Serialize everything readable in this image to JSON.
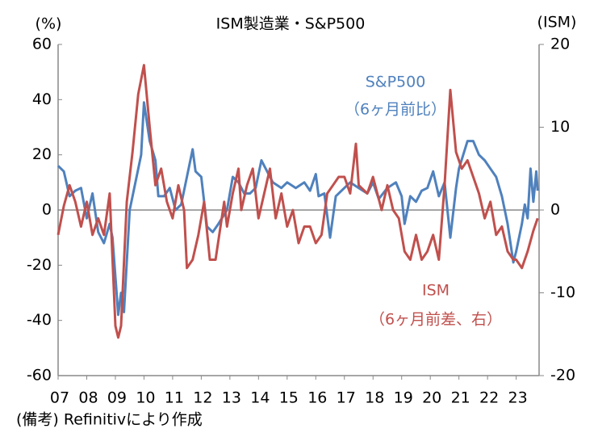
{
  "chart_data": {
    "type": "line",
    "title": "ISM製造業・S&P500",
    "y_label": "(%)",
    "y2_label": "(ISM)",
    "footnote": "(備考) Refinitivにより作成",
    "xlim": [
      2007,
      2023.8
    ],
    "xticks": [
      {
        "value": 2007,
        "label": "07"
      },
      {
        "value": 2008,
        "label": "08"
      },
      {
        "value": 2009,
        "label": "09"
      },
      {
        "value": 2010,
        "label": "10"
      },
      {
        "value": 2011,
        "label": "11"
      },
      {
        "value": 2012,
        "label": "12"
      },
      {
        "value": 2013,
        "label": "13"
      },
      {
        "value": 2014,
        "label": "14"
      },
      {
        "value": 2015,
        "label": "15"
      },
      {
        "value": 2016,
        "label": "16"
      },
      {
        "value": 2017,
        "label": "17"
      },
      {
        "value": 2018,
        "label": "18"
      },
      {
        "value": 2019,
        "label": "19"
      },
      {
        "value": 2020,
        "label": "20"
      },
      {
        "value": 2021,
        "label": "21"
      },
      {
        "value": 2022,
        "label": "22"
      },
      {
        "value": 2023,
        "label": "23"
      }
    ],
    "ylim": [
      -60,
      60
    ],
    "yticks": [
      -60,
      -40,
      -20,
      0,
      20,
      40,
      60
    ],
    "y2lim": [
      -20,
      20
    ],
    "y2ticks": [
      -20,
      -10,
      0,
      10,
      20
    ],
    "series": [
      {
        "name": "S&P500",
        "note": "（6ヶ月前比）",
        "color": "#4f81bd",
        "x": [
          2007.0,
          2007.2,
          2007.4,
          2007.6,
          2007.8,
          2008.0,
          2008.2,
          2008.4,
          2008.6,
          2008.8,
          2008.9,
          2009.1,
          2009.2,
          2009.3,
          2009.5,
          2009.7,
          2009.9,
          2010.0,
          2010.2,
          2010.4,
          2010.5,
          2010.7,
          2010.9,
          2011.1,
          2011.3,
          2011.5,
          2011.7,
          2011.8,
          2012.0,
          2012.2,
          2012.4,
          2012.6,
          2012.9,
          2013.1,
          2013.3,
          2013.5,
          2013.7,
          2013.9,
          2014.1,
          2014.3,
          2014.5,
          2014.8,
          2015.0,
          2015.3,
          2015.6,
          2015.8,
          2016.0,
          2016.1,
          2016.3,
          2016.5,
          2016.7,
          2016.9,
          2017.2,
          2017.5,
          2017.8,
          2018.0,
          2018.2,
          2018.5,
          2018.8,
          2019.0,
          2019.1,
          2019.3,
          2019.5,
          2019.7,
          2019.9,
          2020.1,
          2020.3,
          2020.5,
          2020.7,
          2020.9,
          2021.0,
          2021.3,
          2021.5,
          2021.7,
          2021.9,
          2022.1,
          2022.3,
          2022.5,
          2022.7,
          2022.9,
          2023.0,
          2023.2,
          2023.3,
          2023.4,
          2023.5,
          2023.6,
          2023.7,
          2023.75
        ],
        "values": [
          16,
          14,
          5,
          7,
          8,
          -3,
          6,
          -8,
          -12,
          -5,
          -10,
          -38,
          -30,
          -37,
          0,
          10,
          20,
          39,
          25,
          18,
          5,
          5,
          8,
          0,
          2,
          12,
          22,
          14,
          12,
          -6,
          -8,
          -5,
          0,
          12,
          10,
          6,
          6,
          8,
          18,
          14,
          10,
          8,
          10,
          8,
          10,
          7,
          13,
          5,
          6,
          -10,
          5,
          7,
          10,
          8,
          6,
          10,
          4,
          8,
          10,
          5,
          -5,
          5,
          3,
          7,
          8,
          14,
          5,
          10,
          -10,
          8,
          15,
          25,
          25,
          20,
          18,
          15,
          12,
          5,
          -5,
          -19,
          -15,
          -5,
          2,
          -3,
          15,
          3,
          14,
          7
        ]
      },
      {
        "name": "ISM",
        "note": "（6ヶ月前差、右）",
        "color": "#c0504d",
        "axis": "y2",
        "x": [
          2007.0,
          2007.2,
          2007.4,
          2007.6,
          2007.8,
          2008.0,
          2008.2,
          2008.4,
          2008.6,
          2008.8,
          2009.0,
          2009.1,
          2009.2,
          2009.4,
          2009.6,
          2009.8,
          2010.0,
          2010.2,
          2010.4,
          2010.6,
          2010.8,
          2011.0,
          2011.2,
          2011.4,
          2011.5,
          2011.7,
          2011.9,
          2012.1,
          2012.3,
          2012.5,
          2012.8,
          2012.9,
          2013.1,
          2013.3,
          2013.4,
          2013.6,
          2013.8,
          2014.0,
          2014.2,
          2014.4,
          2014.6,
          2014.8,
          2015.0,
          2015.2,
          2015.4,
          2015.6,
          2015.8,
          2016.0,
          2016.2,
          2016.4,
          2016.6,
          2016.8,
          2017.0,
          2017.2,
          2017.4,
          2017.5,
          2017.8,
          2018.0,
          2018.3,
          2018.5,
          2018.7,
          2018.9,
          2019.1,
          2019.3,
          2019.5,
          2019.7,
          2019.9,
          2020.1,
          2020.3,
          2020.5,
          2020.7,
          2020.9,
          2021.1,
          2021.3,
          2021.5,
          2021.7,
          2021.9,
          2022.1,
          2022.3,
          2022.5,
          2022.7,
          2022.9,
          2023.0,
          2023.2,
          2023.4,
          2023.6,
          2023.75
        ],
        "values": [
          -3,
          0.5,
          3,
          1,
          -2,
          1,
          -3,
          -1,
          -3,
          2,
          -14,
          -15.4,
          -14,
          1,
          7,
          14,
          17.5,
          10,
          3,
          5,
          1,
          -1,
          3,
          0,
          -7,
          -6,
          -3,
          1,
          -6,
          -6,
          1,
          -2,
          2,
          5,
          0,
          3,
          5,
          -1,
          2,
          5,
          -1,
          2,
          -2,
          0,
          -4,
          -2,
          -2,
          -4,
          -3,
          2,
          3,
          4,
          4,
          2,
          8,
          3,
          2,
          4,
          0,
          3,
          0,
          -1,
          -5,
          -6,
          -3,
          -6,
          -5,
          -3,
          -6,
          3,
          14.5,
          7,
          5,
          6,
          4,
          2,
          -1,
          1,
          -3,
          -2,
          -5,
          -6,
          -6,
          -7,
          -5,
          -2.5,
          -1
        ]
      }
    ],
    "grid": false
  }
}
